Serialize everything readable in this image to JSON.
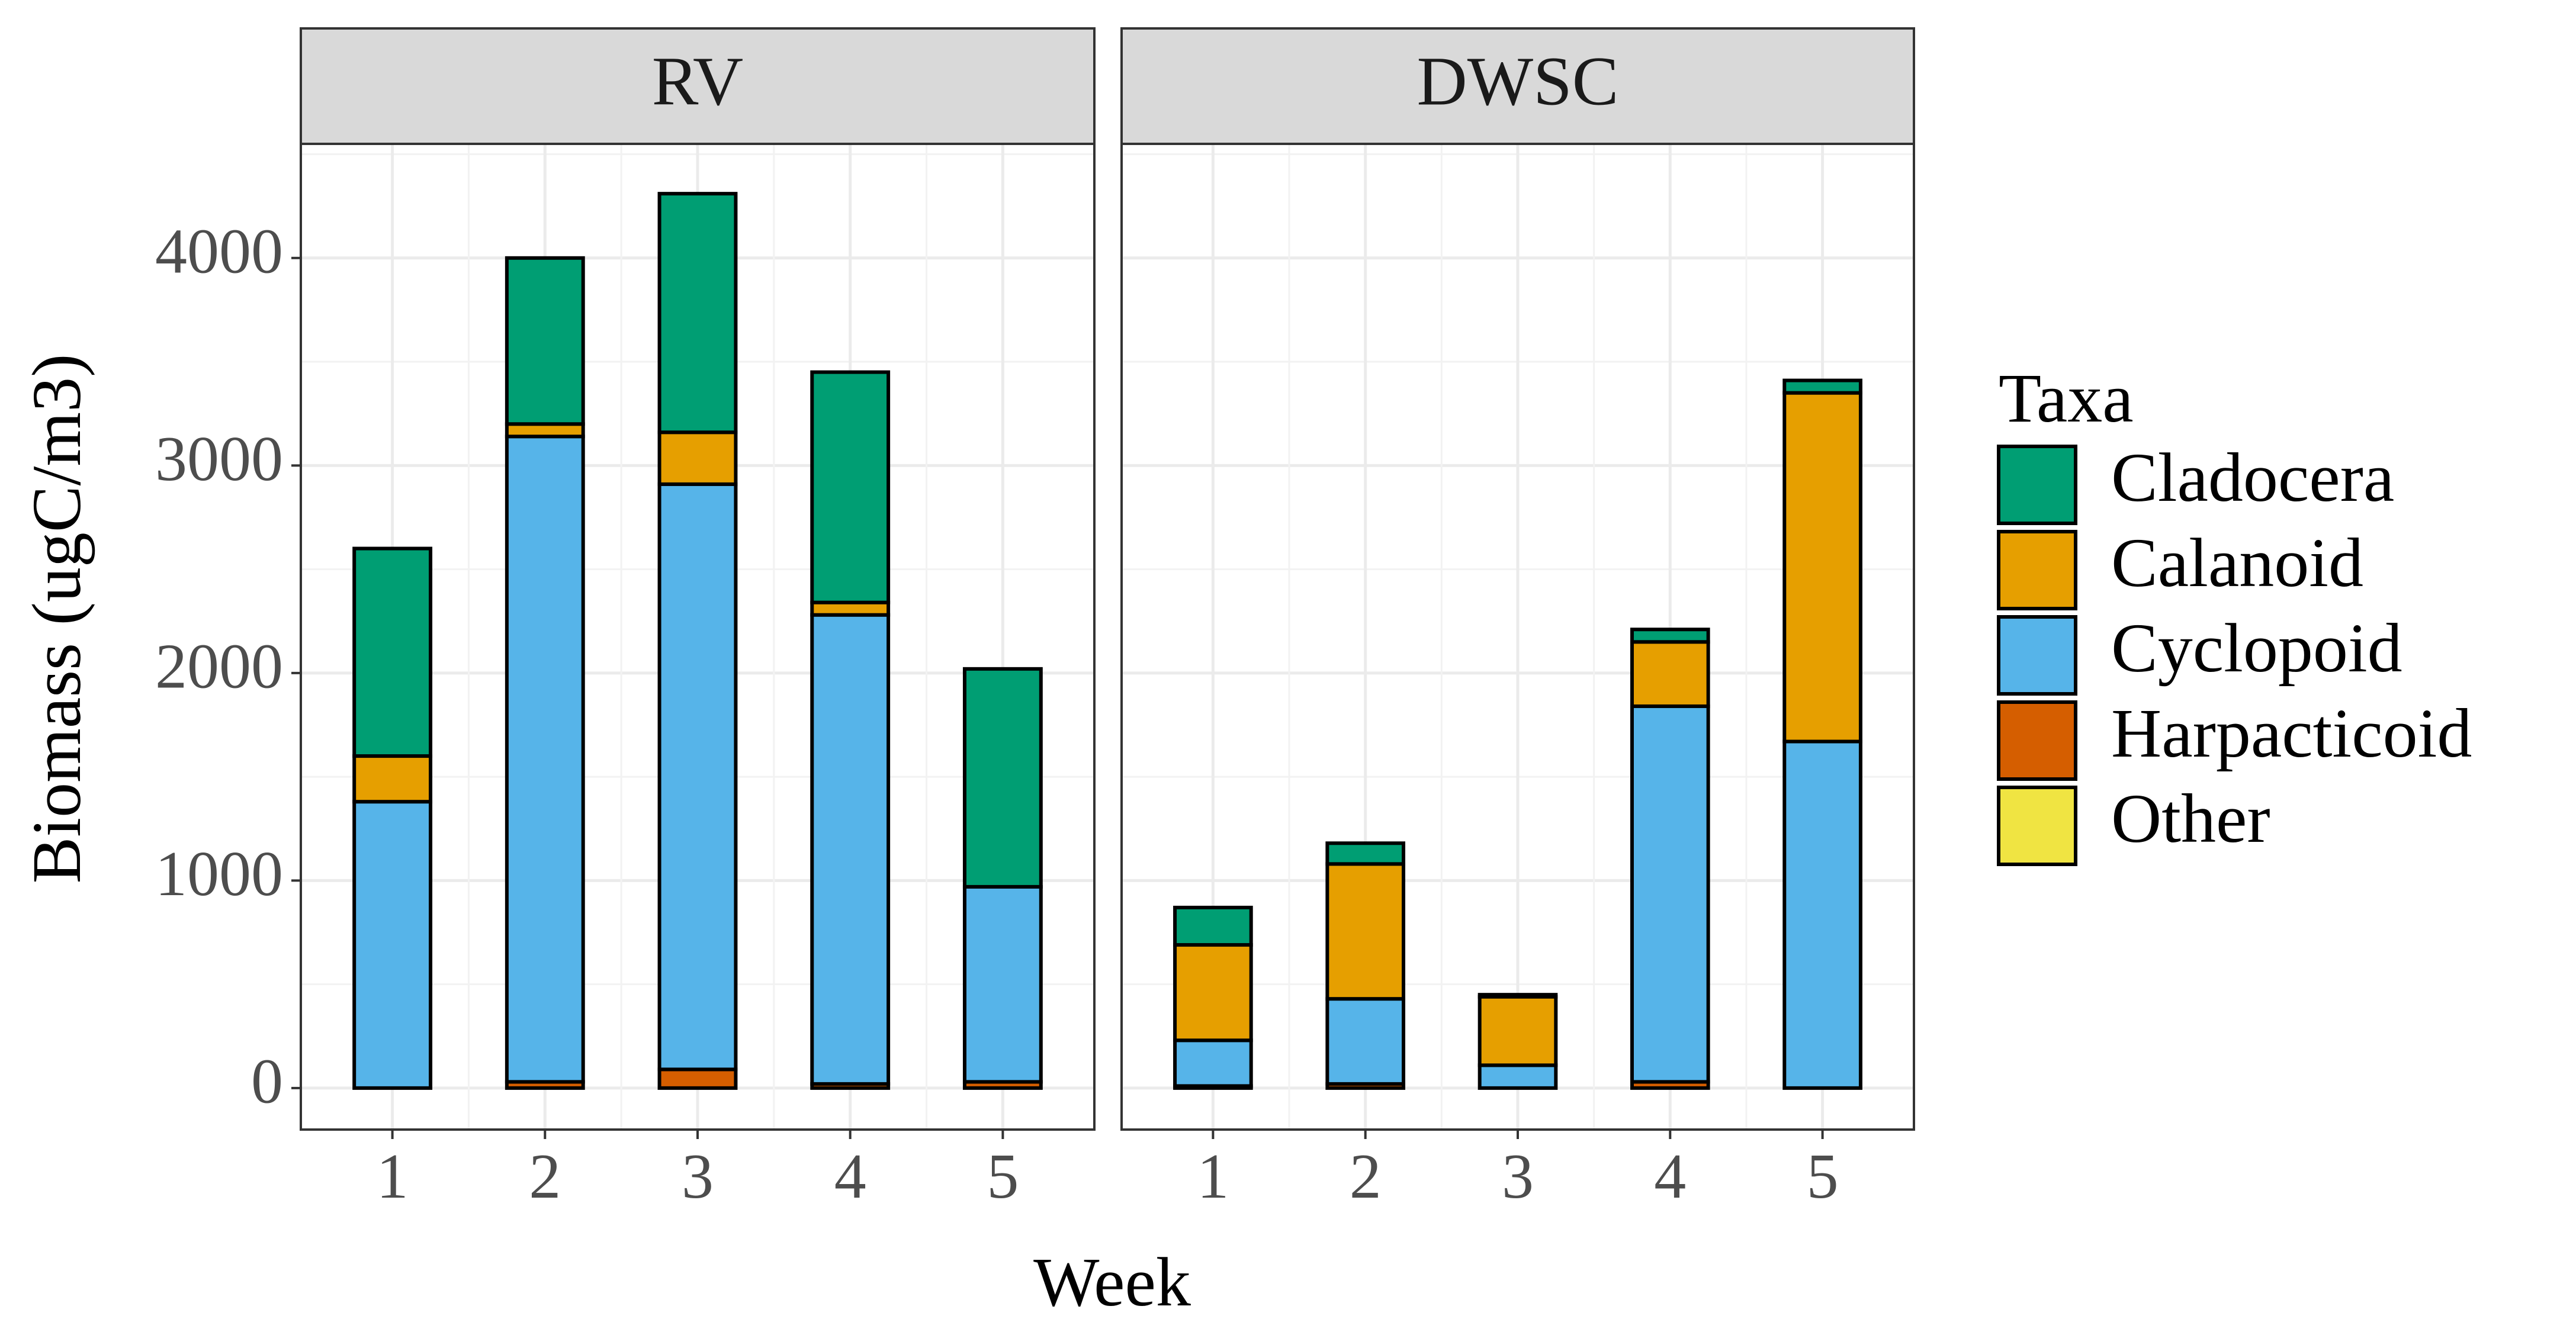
{
  "chart_data": {
    "type": "bar",
    "stacked": true,
    "xlabel": "Week",
    "ylabel": "Biomass (ugC/m3)",
    "ylim": [
      -200,
      4550
    ],
    "yticks": [
      0,
      1000,
      2000,
      3000,
      4000
    ],
    "categories": [
      "1",
      "2",
      "3",
      "4",
      "5"
    ],
    "grid": true,
    "legend": {
      "title": "Taxa",
      "placement": "right",
      "entries": [
        "Cladocera",
        "Calanoid",
        "Cyclopoid",
        "Harpacticoid",
        "Other"
      ]
    },
    "colors": {
      "Cladocera": "#009E73",
      "Calanoid": "#E69F00",
      "Cyclopoid": "#56B4E9",
      "Harpacticoid": "#D55E00",
      "Other": "#F0E442"
    },
    "stack_order": [
      "Other",
      "Harpacticoid",
      "Cyclopoid",
      "Calanoid",
      "Cladocera"
    ],
    "panels": [
      {
        "title": "RV",
        "series": [
          {
            "name": "Cladocera",
            "values": [
              1000,
              800,
              1150,
              1110,
              1050
            ]
          },
          {
            "name": "Calanoid",
            "values": [
              220,
              60,
              250,
              60,
              0
            ]
          },
          {
            "name": "Cyclopoid",
            "values": [
              1380,
              3110,
              2820,
              2260,
              940
            ]
          },
          {
            "name": "Harpacticoid",
            "values": [
              0,
              30,
              90,
              20,
              30
            ]
          },
          {
            "name": "Other",
            "values": [
              0,
              0,
              0,
              0,
              0
            ]
          }
        ]
      },
      {
        "title": "DWSC",
        "series": [
          {
            "name": "Cladocera",
            "values": [
              180,
              100,
              10,
              60,
              60
            ]
          },
          {
            "name": "Calanoid",
            "values": [
              460,
              650,
              330,
              310,
              1680
            ]
          },
          {
            "name": "Cyclopoid",
            "values": [
              220,
              410,
              110,
              1810,
              1670
            ]
          },
          {
            "name": "Harpacticoid",
            "values": [
              10,
              20,
              0,
              30,
              0
            ]
          },
          {
            "name": "Other",
            "values": [
              0,
              0,
              0,
              0,
              0
            ]
          }
        ]
      }
    ]
  }
}
